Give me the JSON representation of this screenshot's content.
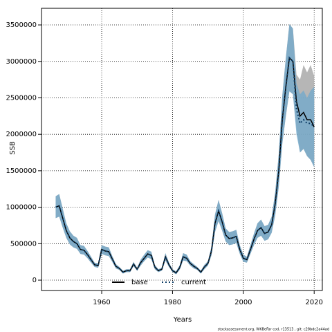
{
  "chart_data": {
    "type": "line",
    "x_label": "Years",
    "y_label": "SSB",
    "footnote": "stockassessment.org, WKBeFar cod, r13513 , git: c28bdc2a44ad",
    "x": [
      1947,
      1948,
      1949,
      1950,
      1951,
      1952,
      1953,
      1954,
      1955,
      1956,
      1957,
      1958,
      1959,
      1960,
      1961,
      1962,
      1963,
      1964,
      1965,
      1966,
      1967,
      1968,
      1969,
      1970,
      1971,
      1972,
      1973,
      1974,
      1975,
      1976,
      1977,
      1978,
      1979,
      1980,
      1981,
      1982,
      1983,
      1984,
      1985,
      1986,
      1987,
      1988,
      1989,
      1990,
      1991,
      1992,
      1993,
      1994,
      1995,
      1996,
      1997,
      1998,
      1999,
      2000,
      2001,
      2002,
      2003,
      2004,
      2005,
      2006,
      2007,
      2008,
      2009,
      2010,
      2011,
      2012,
      2013,
      2014,
      2015,
      2016,
      2017,
      2018,
      2019,
      2020
    ],
    "series": [
      {
        "name": "base",
        "color": "#000000",
        "band_color": "#a9a9a9",
        "values": [
          1000000,
          1020000,
          850000,
          680000,
          580000,
          530000,
          500000,
          420000,
          410000,
          350000,
          280000,
          210000,
          200000,
          420000,
          400000,
          390000,
          290000,
          190000,
          160000,
          110000,
          130000,
          130000,
          220000,
          150000,
          240000,
          300000,
          360000,
          340000,
          180000,
          130000,
          150000,
          320000,
          210000,
          130000,
          100000,
          170000,
          320000,
          300000,
          230000,
          190000,
          160000,
          110000,
          180000,
          230000,
          400000,
          780000,
          950000,
          800000,
          620000,
          570000,
          580000,
          600000,
          420000,
          300000,
          280000,
          420000,
          560000,
          680000,
          720000,
          640000,
          660000,
          760000,
          1050000,
          1500000,
          2200000,
          2650000,
          3050000,
          3000000,
          2450000,
          2250000,
          2300000,
          2200000,
          2200000,
          2100000
        ],
        "lower": [
          850000,
          870000,
          720000,
          580000,
          490000,
          450000,
          430000,
          360000,
          350000,
          300000,
          240000,
          180000,
          170000,
          360000,
          340000,
          330000,
          250000,
          160000,
          140000,
          90000,
          110000,
          110000,
          190000,
          130000,
          200000,
          260000,
          310000,
          290000,
          150000,
          110000,
          130000,
          270000,
          180000,
          110000,
          80000,
          140000,
          270000,
          260000,
          200000,
          160000,
          140000,
          90000,
          150000,
          200000,
          340000,
          660000,
          810000,
          680000,
          530000,
          480000,
          490000,
          510000,
          360000,
          250000,
          240000,
          360000,
          480000,
          580000,
          610000,
          540000,
          560000,
          650000,
          890000,
          1280000,
          1870000,
          2250000,
          2590000,
          2550000,
          2080000,
          1750000,
          1800000,
          1700000,
          1650000,
          1550000
        ],
        "upper": [
          1150000,
          1180000,
          980000,
          780000,
          670000,
          610000,
          580000,
          480000,
          470000,
          400000,
          320000,
          240000,
          230000,
          480000,
          460000,
          450000,
          330000,
          220000,
          180000,
          130000,
          150000,
          150000,
          250000,
          170000,
          280000,
          350000,
          410000,
          390000,
          210000,
          150000,
          170000,
          370000,
          240000,
          150000,
          120000,
          200000,
          370000,
          350000,
          260000,
          220000,
          180000,
          130000,
          210000,
          260000,
          460000,
          900000,
          1100000,
          920000,
          710000,
          660000,
          670000,
          690000,
          480000,
          350000,
          320000,
          480000,
          640000,
          780000,
          830000,
          740000,
          760000,
          870000,
          1210000,
          1730000,
          2530000,
          3050000,
          3510000,
          3450000,
          2820000,
          2750000,
          2950000,
          2850000,
          2950000,
          2800000
        ]
      },
      {
        "name": "current",
        "color": "#0d3d66",
        "band_color": "#6fa8cc",
        "values": [
          1000000,
          1020000,
          850000,
          680000,
          580000,
          530000,
          500000,
          420000,
          410000,
          350000,
          280000,
          210000,
          200000,
          420000,
          400000,
          390000,
          290000,
          190000,
          160000,
          110000,
          130000,
          130000,
          220000,
          150000,
          240000,
          300000,
          360000,
          340000,
          180000,
          130000,
          150000,
          320000,
          210000,
          130000,
          100000,
          170000,
          320000,
          300000,
          230000,
          190000,
          160000,
          110000,
          180000,
          230000,
          400000,
          780000,
          950000,
          800000,
          620000,
          570000,
          580000,
          600000,
          420000,
          300000,
          280000,
          420000,
          560000,
          680000,
          720000,
          640000,
          660000,
          760000,
          1050000,
          1500000,
          2200000,
          2650000,
          3050000,
          3000000,
          2350000,
          2150000,
          2200000,
          2150000,
          2150000,
          2100000
        ],
        "lower": [
          850000,
          870000,
          720000,
          580000,
          490000,
          450000,
          430000,
          360000,
          350000,
          300000,
          240000,
          180000,
          170000,
          360000,
          340000,
          330000,
          250000,
          160000,
          140000,
          90000,
          110000,
          110000,
          190000,
          130000,
          200000,
          260000,
          310000,
          290000,
          150000,
          110000,
          130000,
          270000,
          180000,
          110000,
          80000,
          140000,
          270000,
          260000,
          200000,
          160000,
          140000,
          90000,
          150000,
          200000,
          340000,
          660000,
          810000,
          680000,
          530000,
          480000,
          490000,
          510000,
          360000,
          250000,
          240000,
          360000,
          480000,
          580000,
          610000,
          540000,
          560000,
          650000,
          890000,
          1280000,
          1870000,
          2250000,
          2590000,
          2550000,
          2000000,
          1750000,
          1800000,
          1700000,
          1650000,
          1550000
        ],
        "upper": [
          1150000,
          1180000,
          980000,
          780000,
          670000,
          610000,
          580000,
          480000,
          470000,
          400000,
          320000,
          240000,
          230000,
          480000,
          460000,
          450000,
          330000,
          220000,
          180000,
          130000,
          150000,
          150000,
          250000,
          170000,
          280000,
          350000,
          410000,
          390000,
          210000,
          150000,
          170000,
          370000,
          240000,
          150000,
          120000,
          200000,
          370000,
          350000,
          260000,
          220000,
          180000,
          130000,
          210000,
          260000,
          460000,
          900000,
          1100000,
          920000,
          710000,
          660000,
          670000,
          690000,
          480000,
          350000,
          320000,
          480000,
          640000,
          780000,
          830000,
          740000,
          760000,
          870000,
          1210000,
          1730000,
          2530000,
          3050000,
          3510000,
          3450000,
          2700000,
          2550000,
          2600000,
          2500000,
          2600000,
          2650000
        ]
      }
    ],
    "xlim": [
      1943,
      2022.3
    ],
    "xticks": [
      1960,
      1980,
      2000,
      2020
    ],
    "ylim": [
      -142000,
      3728000
    ],
    "yticks": [
      0,
      500000,
      1000000,
      1500000,
      2000000,
      2500000,
      3000000,
      3500000
    ],
    "grid": true,
    "legend": "bottom"
  }
}
